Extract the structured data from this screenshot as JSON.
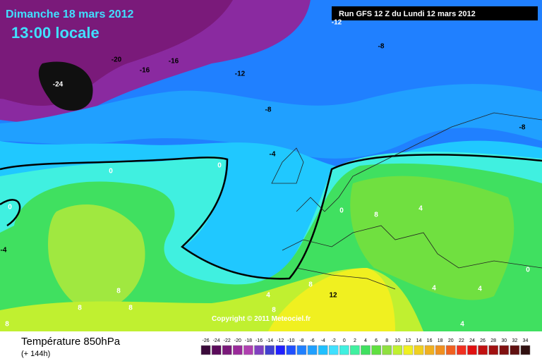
{
  "header": {
    "title": "Dimanche 18 mars 2012",
    "time": "13:00 locale",
    "run": "Run GFS 12 Z du Lundi 12 mars 2012"
  },
  "map": {
    "contour_labels": [
      "-20",
      "-16",
      "-16",
      "-12",
      "-24",
      "-8",
      "-12",
      "-8",
      "-8",
      "-4",
      "0",
      "0",
      "0",
      "0",
      "-4",
      "0",
      "4",
      "8",
      "12",
      "8",
      "8",
      "8",
      "8",
      "8",
      "4",
      "8",
      "4",
      "4",
      "4"
    ],
    "copyright": "Copyright © 2011 Meteociel.fr"
  },
  "footer": {
    "title": "Température 850hPa",
    "subtitle": "(+ 144h)"
  },
  "legend": [
    {
      "label": "-26",
      "color": "#3a0a3a"
    },
    {
      "label": "-24",
      "color": "#5a0a5a"
    },
    {
      "label": "-22",
      "color": "#7a1a7a"
    },
    {
      "label": "-20",
      "color": "#9a2a9a"
    },
    {
      "label": "-18",
      "color": "#b040b0"
    },
    {
      "label": "-16",
      "color": "#8040c0"
    },
    {
      "label": "-14",
      "color": "#4040d0"
    },
    {
      "label": "-12",
      "color": "#2020ff"
    },
    {
      "label": "-10",
      "color": "#2050ff"
    },
    {
      "label": "-8",
      "color": "#2080ff"
    },
    {
      "label": "-6",
      "color": "#20a0ff"
    },
    {
      "label": "-4",
      "color": "#20c0ff"
    },
    {
      "label": "-2",
      "color": "#40e0ff"
    },
    {
      "label": "0",
      "color": "#40f0e0"
    },
    {
      "label": "2",
      "color": "#40f0a0"
    },
    {
      "label": "4",
      "color": "#40e060"
    },
    {
      "label": "6",
      "color": "#60e040"
    },
    {
      "label": "8",
      "color": "#90e040"
    },
    {
      "label": "10",
      "color": "#c0f030"
    },
    {
      "label": "12",
      "color": "#f0f020"
    },
    {
      "label": "14",
      "color": "#f0d020"
    },
    {
      "label": "16",
      "color": "#f0b020"
    },
    {
      "label": "18",
      "color": "#f09020"
    },
    {
      "label": "20",
      "color": "#f06020"
    },
    {
      "label": "22",
      "color": "#f03020"
    },
    {
      "label": "24",
      "color": "#e01010"
    },
    {
      "label": "26",
      "color": "#c01010"
    },
    {
      "label": "28",
      "color": "#a01010"
    },
    {
      "label": "30",
      "color": "#801010"
    },
    {
      "label": "32",
      "color": "#601010"
    },
    {
      "label": "34",
      "color": "#301010"
    }
  ]
}
